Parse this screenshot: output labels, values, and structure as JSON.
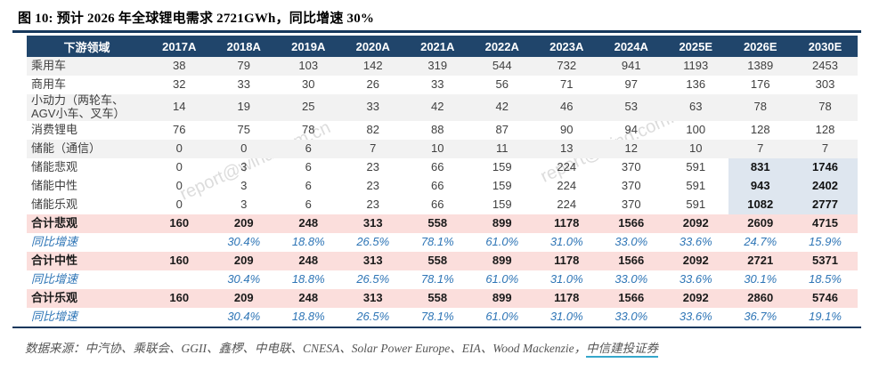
{
  "title": "图 10: 预计 2026 年全球锂电需求 2721GWh，同比增速 30%",
  "watermark_text": "report@wind.com.cn",
  "colors": {
    "header_bg": "#20456b",
    "title_rule": "#16385c",
    "stripe_bg": "#f2f2f2",
    "total_row_bg": "#fbdedc",
    "highlight_cell_bg": "#dee6ef",
    "growth_text": "#2e75b6",
    "link_underline": "#35a7cb"
  },
  "chart_data": {
    "type": "table",
    "title": "图 10: 预计 2026 年全球锂电需求 2721GWh，同比增速 30%",
    "unit": "GWh",
    "columns": [
      "下游领域",
      "2017A",
      "2018A",
      "2019A",
      "2020A",
      "2021A",
      "2022A",
      "2023A",
      "2024A",
      "2025E",
      "2026E",
      "2030E"
    ],
    "rows": [
      {
        "label": "乘用车",
        "type": "data",
        "shade": true,
        "highlight_last_two": false,
        "values": [
          "38",
          "79",
          "103",
          "142",
          "319",
          "544",
          "732",
          "941",
          "1193",
          "1389",
          "2453"
        ]
      },
      {
        "label": "商用车",
        "type": "data",
        "shade": false,
        "highlight_last_two": false,
        "values": [
          "32",
          "33",
          "30",
          "26",
          "33",
          "56",
          "71",
          "97",
          "136",
          "176",
          "303"
        ]
      },
      {
        "label": "小动力（两轮车、AGV小车、叉车）",
        "type": "data",
        "shade": true,
        "highlight_last_two": false,
        "values": [
          "14",
          "19",
          "25",
          "33",
          "42",
          "42",
          "46",
          "53",
          "63",
          "78",
          "78"
        ]
      },
      {
        "label": "消费锂电",
        "type": "data",
        "shade": false,
        "highlight_last_two": false,
        "values": [
          "76",
          "75",
          "78",
          "82",
          "88",
          "87",
          "90",
          "94",
          "100",
          "128",
          "128"
        ]
      },
      {
        "label": "储能（通信）",
        "type": "data",
        "shade": true,
        "highlight_last_two": false,
        "values": [
          "0",
          "0",
          "6",
          "7",
          "10",
          "11",
          "13",
          "12",
          "10",
          "7",
          "7"
        ]
      },
      {
        "label": "储能悲观",
        "type": "data",
        "shade": false,
        "highlight_last_two": true,
        "values": [
          "0",
          "3",
          "6",
          "23",
          "66",
          "159",
          "224",
          "370",
          "591",
          "831",
          "1746"
        ]
      },
      {
        "label": "储能中性",
        "type": "data",
        "shade": false,
        "highlight_last_two": true,
        "values": [
          "0",
          "3",
          "6",
          "23",
          "66",
          "159",
          "224",
          "370",
          "591",
          "943",
          "2402"
        ]
      },
      {
        "label": "储能乐观",
        "type": "data",
        "shade": false,
        "highlight_last_two": true,
        "values": [
          "0",
          "3",
          "6",
          "23",
          "66",
          "159",
          "224",
          "370",
          "591",
          "1082",
          "2777"
        ]
      },
      {
        "label": "合计悲观",
        "type": "total",
        "shade": false,
        "highlight_last_two": false,
        "values": [
          "160",
          "209",
          "248",
          "313",
          "558",
          "899",
          "1178",
          "1566",
          "2092",
          "2609",
          "4715"
        ]
      },
      {
        "label": "同比增速",
        "type": "growth",
        "shade": false,
        "highlight_last_two": false,
        "values": [
          "",
          "30.4%",
          "18.8%",
          "26.5%",
          "78.1%",
          "61.0%",
          "31.0%",
          "33.0%",
          "33.6%",
          "24.7%",
          "15.9%"
        ]
      },
      {
        "label": "合计中性",
        "type": "total",
        "shade": false,
        "highlight_last_two": false,
        "values": [
          "160",
          "209",
          "248",
          "313",
          "558",
          "899",
          "1178",
          "1566",
          "2092",
          "2721",
          "5371"
        ]
      },
      {
        "label": "同比增速",
        "type": "growth",
        "shade": false,
        "highlight_last_two": false,
        "values": [
          "",
          "30.4%",
          "18.8%",
          "26.5%",
          "78.1%",
          "61.0%",
          "31.0%",
          "33.0%",
          "33.6%",
          "30.1%",
          "18.5%"
        ]
      },
      {
        "label": "合计乐观",
        "type": "total",
        "shade": false,
        "highlight_last_two": false,
        "values": [
          "160",
          "209",
          "248",
          "313",
          "558",
          "899",
          "1178",
          "1566",
          "2092",
          "2860",
          "5746"
        ]
      },
      {
        "label": "同比增速",
        "type": "growth",
        "shade": false,
        "highlight_last_two": false,
        "values": [
          "",
          "30.4%",
          "18.8%",
          "26.5%",
          "78.1%",
          "61.0%",
          "31.0%",
          "33.0%",
          "33.6%",
          "36.7%",
          "19.1%"
        ]
      }
    ]
  },
  "footer": {
    "source_prefix": "数据来源：中汽协、乘联会、GGII、鑫椤、中电联、CNESA、Solar Power Europe、EIA、Wood Mackenzie，",
    "source_link": "中信建投证券"
  }
}
